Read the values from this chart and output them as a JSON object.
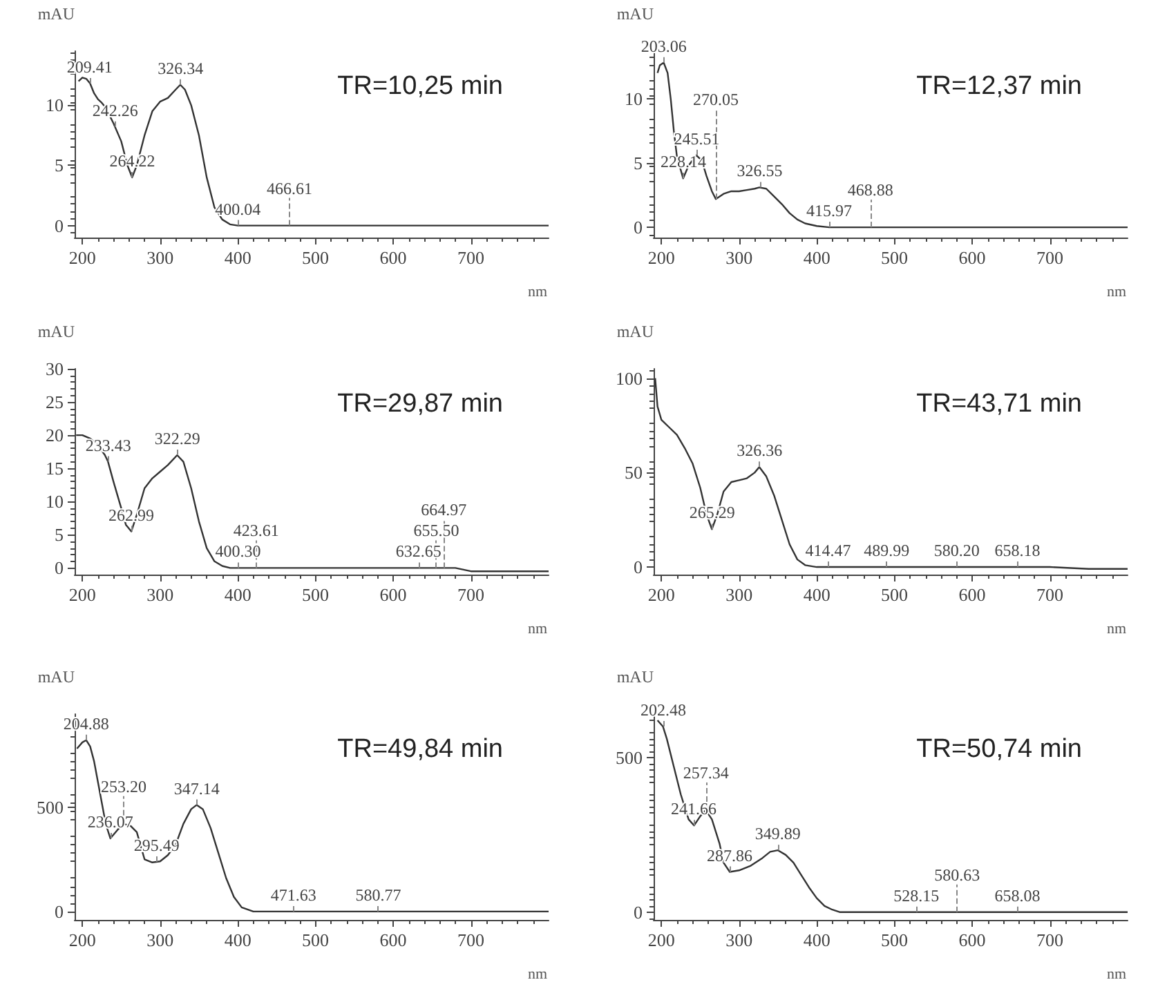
{
  "chart_data": [
    {
      "type": "line",
      "title": "TR=10,25 min",
      "xlabel": "nm",
      "ylabel": "mAU",
      "marker": "none",
      "color": "#333333",
      "xlim": [
        190,
        800
      ],
      "xticks": [
        200,
        300,
        400,
        500,
        600,
        700
      ],
      "ylim": [
        -1,
        14.5
      ],
      "yticks": [
        0,
        5,
        10
      ],
      "x": [
        195,
        200,
        205,
        210,
        215,
        220,
        225,
        230,
        240,
        250,
        258,
        264,
        270,
        280,
        290,
        300,
        310,
        320,
        326,
        332,
        340,
        350,
        360,
        370,
        380,
        390,
        400,
        450,
        500,
        600,
        700,
        800
      ],
      "values": [
        12,
        12.3,
        12.2,
        11.8,
        11,
        10.5,
        10.2,
        9.8,
        8.5,
        7,
        5,
        4,
        5,
        7.5,
        9.5,
        10.3,
        10.6,
        11.3,
        11.7,
        11.3,
        10,
        7.5,
        4,
        1.5,
        0.5,
        0.1,
        0,
        0,
        0,
        0,
        0,
        0
      ],
      "annotations": [
        {
          "text": "209.41",
          "x": 209.41,
          "y": 11.8
        },
        {
          "text": "242.26",
          "x": 242.26,
          "y": 8.2
        },
        {
          "text": "264.22",
          "x": 264.22,
          "y": 4
        },
        {
          "text": "326.34",
          "x": 326.34,
          "y": 11.7
        },
        {
          "text": "400.04",
          "x": 400.04,
          "y": 0
        },
        {
          "text": "466.61",
          "x": 466.61,
          "y": 0
        }
      ]
    },
    {
      "type": "line",
      "title": "TR=12,37 min",
      "xlabel": "nm",
      "ylabel": "mAU",
      "marker": "none",
      "color": "#333333",
      "xlim": [
        190,
        800
      ],
      "xticks": [
        200,
        300,
        400,
        500,
        600,
        700
      ],
      "ylim": [
        -0.8,
        13.7
      ],
      "yticks": [
        0,
        5,
        10
      ],
      "x": [
        195,
        198,
        203,
        208,
        212,
        216,
        220,
        228,
        235,
        245,
        252,
        258,
        265,
        270,
        280,
        290,
        300,
        310,
        320,
        326,
        335,
        345,
        355,
        365,
        375,
        385,
        400,
        416,
        500,
        600,
        700,
        800
      ],
      "values": [
        12,
        12.6,
        12.8,
        12,
        10,
        7.5,
        5.5,
        3.8,
        4.8,
        5.6,
        5.2,
        4,
        2.8,
        2.2,
        2.6,
        2.8,
        2.8,
        2.9,
        3,
        3.1,
        3,
        2.4,
        1.8,
        1.1,
        0.6,
        0.3,
        0.1,
        0,
        0,
        0,
        0,
        0
      ],
      "annotations": [
        {
          "text": "203.06",
          "x": 203.06,
          "y": 12.8
        },
        {
          "text": "245.51",
          "x": 245.51,
          "y": 5.6
        },
        {
          "text": "228.14",
          "x": 228.14,
          "y": 3.8
        },
        {
          "text": "270.05",
          "x": 270.05,
          "y": 2.2
        },
        {
          "text": "326.55",
          "x": 326.55,
          "y": 3.1
        },
        {
          "text": "415.97",
          "x": 415.97,
          "y": 0
        },
        {
          "text": "468.88",
          "x": 468.88,
          "y": 0
        }
      ]
    },
    {
      "type": "line",
      "title": "TR=29,87 min",
      "xlabel": "nm",
      "ylabel": "mAU",
      "marker": "none",
      "color": "#333333",
      "xlim": [
        190,
        800
      ],
      "xticks": [
        200,
        300,
        400,
        500,
        600,
        700
      ],
      "ylim": [
        -1,
        30
      ],
      "yticks": [
        0,
        5,
        10,
        15,
        20,
        25,
        30
      ],
      "x": [
        192,
        200,
        210,
        220,
        229,
        233,
        240,
        250,
        256,
        263,
        270,
        280,
        290,
        300,
        310,
        322,
        330,
        340,
        350,
        360,
        370,
        380,
        390,
        400,
        500,
        600,
        650,
        680,
        700,
        750,
        800
      ],
      "values": [
        20,
        20,
        19.5,
        18.5,
        17,
        16,
        13,
        9,
        6.5,
        5.5,
        8,
        12,
        13.5,
        14.5,
        15.5,
        17,
        16,
        12,
        7,
        3,
        1,
        0.3,
        0,
        0,
        0,
        0,
        0,
        0,
        -0.5,
        -0.5,
        -0.5
      ],
      "annotations": [
        {
          "text": "233.43",
          "x": 233.43,
          "y": 16
        },
        {
          "text": "262.99",
          "x": 262.99,
          "y": 5.5
        },
        {
          "text": "322.29",
          "x": 322.29,
          "y": 17
        },
        {
          "text": "400.30",
          "x": 400.3,
          "y": 0
        },
        {
          "text": "423.61",
          "x": 423.61,
          "y": 0
        },
        {
          "text": "632.65",
          "x": 632.65,
          "y": 0
        },
        {
          "text": "655.50",
          "x": 655.5,
          "y": 0
        },
        {
          "text": "664.97",
          "x": 664.97,
          "y": 0
        }
      ]
    },
    {
      "type": "line",
      "title": "TR=43,71 min",
      "xlabel": "nm",
      "ylabel": "mAU",
      "marker": "none",
      "color": "#333333",
      "xlim": [
        190,
        800
      ],
      "xticks": [
        200,
        300,
        400,
        500,
        600,
        700
      ],
      "ylim": [
        -4,
        105
      ],
      "yticks": [
        0,
        50,
        100
      ],
      "x": [
        192,
        195,
        200,
        210,
        220,
        230,
        240,
        250,
        258,
        265,
        272,
        280,
        290,
        300,
        310,
        320,
        326,
        335,
        345,
        355,
        365,
        375,
        385,
        400,
        500,
        600,
        700,
        750,
        800
      ],
      "values": [
        100,
        85,
        78,
        74,
        70,
        63,
        55,
        42,
        28,
        20,
        28,
        40,
        45,
        46,
        47,
        50,
        53,
        48,
        38,
        25,
        12,
        4,
        1,
        0,
        0,
        0,
        0,
        -1,
        -1
      ],
      "annotations": [
        {
          "text": "265.29",
          "x": 265.29,
          "y": 20
        },
        {
          "text": "326.36",
          "x": 326.36,
          "y": 53
        },
        {
          "text": "414.47",
          "x": 414.47,
          "y": 0
        },
        {
          "text": "489.99",
          "x": 489.99,
          "y": 0
        },
        {
          "text": "580.20",
          "x": 580.2,
          "y": 0
        },
        {
          "text": "658.18",
          "x": 658.18,
          "y": 0
        }
      ]
    },
    {
      "type": "line",
      "title": "TR=49,84 min",
      "xlabel": "nm",
      "ylabel": "mAU",
      "marker": "none",
      "color": "#333333",
      "xlim": [
        190,
        800
      ],
      "xticks": [
        200,
        300,
        400,
        500,
        600,
        700
      ],
      "ylim": [
        -40,
        945
      ],
      "yticks": [
        0,
        500
      ],
      "x": [
        193,
        200,
        205,
        210,
        215,
        220,
        225,
        230,
        236,
        245,
        253,
        262,
        270,
        280,
        290,
        300,
        310,
        320,
        330,
        340,
        347,
        355,
        365,
        375,
        385,
        395,
        405,
        420,
        500,
        600,
        700,
        800
      ],
      "values": [
        780,
        810,
        820,
        790,
        720,
        620,
        520,
        420,
        350,
        390,
        420,
        410,
        380,
        250,
        235,
        240,
        270,
        320,
        420,
        490,
        510,
        490,
        400,
        280,
        160,
        70,
        20,
        0,
        0,
        0,
        0,
        0
      ],
      "annotations": [
        {
          "text": "204.88",
          "x": 204.88,
          "y": 820
        },
        {
          "text": "253.20",
          "x": 253.2,
          "y": 420
        },
        {
          "text": "236.07",
          "x": 236.07,
          "y": 350
        },
        {
          "text": "295.49",
          "x": 295.49,
          "y": 238
        },
        {
          "text": "347.14",
          "x": 347.14,
          "y": 510
        },
        {
          "text": "471.63",
          "x": 471.63,
          "y": 0
        },
        {
          "text": "580.77",
          "x": 580.77,
          "y": 0
        }
      ]
    },
    {
      "type": "line",
      "title": "TR=50,74 min",
      "xlabel": "nm",
      "ylabel": "mAU",
      "marker": "none",
      "color": "#333333",
      "xlim": [
        190,
        800
      ],
      "xticks": [
        200,
        300,
        400,
        500,
        600,
        700
      ],
      "ylim": [
        -25,
        640
      ],
      "yticks": [
        0,
        500
      ],
      "x": [
        195,
        202,
        207,
        215,
        225,
        235,
        242,
        250,
        257,
        265,
        275,
        280,
        288,
        300,
        315,
        330,
        340,
        350,
        360,
        370,
        380,
        390,
        400,
        410,
        420,
        430,
        500,
        600,
        700,
        800
      ],
      "values": [
        620,
        600,
        560,
        480,
        380,
        300,
        280,
        310,
        330,
        300,
        220,
        160,
        130,
        135,
        150,
        175,
        195,
        200,
        185,
        160,
        120,
        80,
        45,
        20,
        8,
        0,
        0,
        0,
        0,
        0
      ],
      "annotations": [
        {
          "text": "202.48",
          "x": 202.48,
          "y": 600
        },
        {
          "text": "257.34",
          "x": 257.34,
          "y": 330
        },
        {
          "text": "241.66",
          "x": 241.66,
          "y": 280
        },
        {
          "text": "287.86",
          "x": 287.86,
          "y": 130
        },
        {
          "text": "349.89",
          "x": 349.89,
          "y": 200
        },
        {
          "text": "528.15",
          "x": 528.15,
          "y": 0
        },
        {
          "text": "580.63",
          "x": 580.63,
          "y": 0
        },
        {
          "text": "658.08",
          "x": 658.08,
          "y": 0
        }
      ]
    }
  ]
}
